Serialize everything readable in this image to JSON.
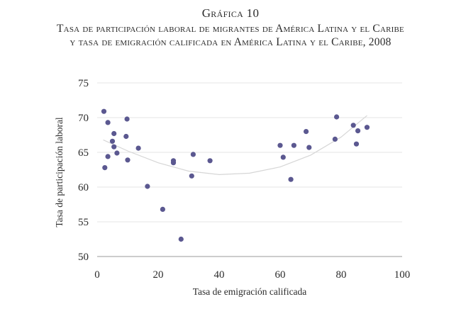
{
  "figure_label": "Gráfica 10",
  "title_lines": [
    "Tasa de participación laboral de migrantes de América Latina y el Caribe",
    "y tasa de emigración calificada en América Latina y el Caribe, 2008"
  ],
  "chart_data": {
    "type": "scatter",
    "title": "Tasa de participación laboral de migrantes de América Latina y el Caribe y tasa de emigración calificada en América Latina y el Caribe, 2008",
    "xlabel": "Tasa de emigración calificada",
    "ylabel": "Tasa de participación laboral",
    "xlim": [
      0,
      100
    ],
    "ylim": [
      50,
      75
    ],
    "xticks": [
      0,
      20,
      40,
      60,
      80,
      100
    ],
    "yticks": [
      50,
      55,
      60,
      65,
      70,
      75
    ],
    "grid": true,
    "point_color": "#5b5890",
    "trend_color": "#d6d6d6",
    "trendline": {
      "type": "quadratic",
      "points": [
        {
          "x": 2,
          "y": 66.8
        },
        {
          "x": 10,
          "y": 65.2
        },
        {
          "x": 20,
          "y": 63.5
        },
        {
          "x": 30,
          "y": 62.3
        },
        {
          "x": 40,
          "y": 61.8
        },
        {
          "x": 50,
          "y": 62.0
        },
        {
          "x": 60,
          "y": 62.9
        },
        {
          "x": 70,
          "y": 64.6
        },
        {
          "x": 80,
          "y": 67.2
        },
        {
          "x": 88.5,
          "y": 70.3
        }
      ]
    },
    "points": [
      {
        "x": 2.2,
        "y": 70.9
      },
      {
        "x": 3.5,
        "y": 69.3
      },
      {
        "x": 9.8,
        "y": 69.8
      },
      {
        "x": 5.5,
        "y": 67.7
      },
      {
        "x": 9.5,
        "y": 67.3
      },
      {
        "x": 5.0,
        "y": 66.6
      },
      {
        "x": 5.5,
        "y": 65.8
      },
      {
        "x": 13.5,
        "y": 65.6
      },
      {
        "x": 6.5,
        "y": 64.9
      },
      {
        "x": 3.5,
        "y": 64.4
      },
      {
        "x": 10.0,
        "y": 63.9
      },
      {
        "x": 2.5,
        "y": 62.8
      },
      {
        "x": 25.0,
        "y": 63.8
      },
      {
        "x": 25.0,
        "y": 63.5
      },
      {
        "x": 31.5,
        "y": 64.7
      },
      {
        "x": 37.0,
        "y": 63.8
      },
      {
        "x": 31.0,
        "y": 61.6
      },
      {
        "x": 16.5,
        "y": 60.1
      },
      {
        "x": 21.5,
        "y": 56.8
      },
      {
        "x": 27.5,
        "y": 52.5
      },
      {
        "x": 60.0,
        "y": 66.0
      },
      {
        "x": 61.0,
        "y": 64.3
      },
      {
        "x": 64.5,
        "y": 66.0
      },
      {
        "x": 63.5,
        "y": 61.1
      },
      {
        "x": 68.5,
        "y": 68.0
      },
      {
        "x": 69.5,
        "y": 65.7
      },
      {
        "x": 78.5,
        "y": 70.1
      },
      {
        "x": 78.0,
        "y": 66.9
      },
      {
        "x": 84.0,
        "y": 68.9
      },
      {
        "x": 85.5,
        "y": 68.1
      },
      {
        "x": 85.0,
        "y": 66.2
      },
      {
        "x": 88.5,
        "y": 68.6
      }
    ]
  }
}
